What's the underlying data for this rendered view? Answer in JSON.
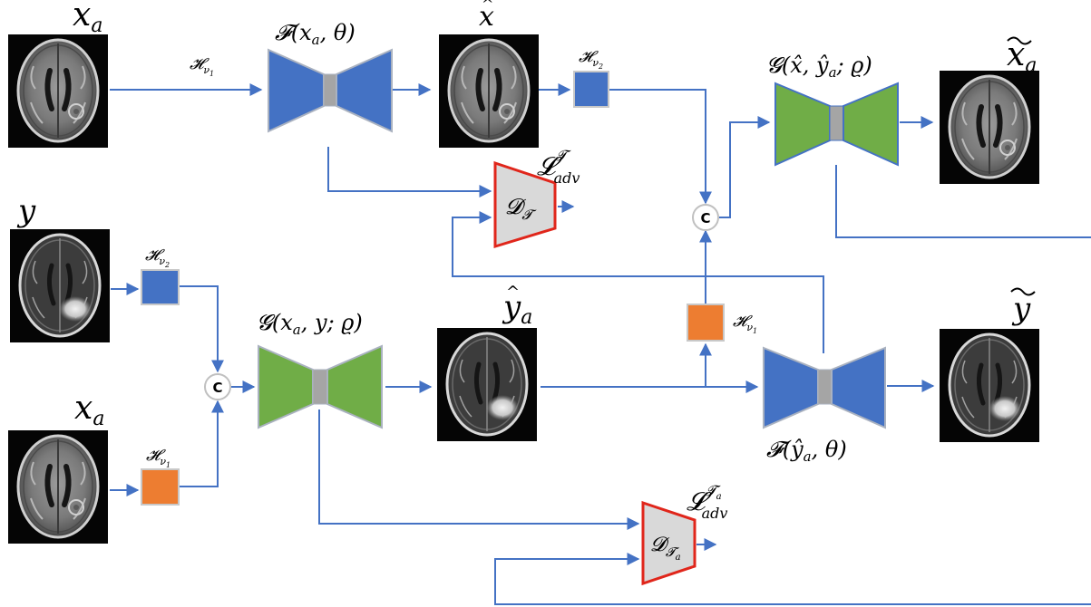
{
  "images": {
    "x_a_top": {
      "label": "x_a",
      "kind": "T1 brain MRI"
    },
    "x_hat": {
      "label": "x̂",
      "kind": "T1 brain MRI"
    },
    "x_tilde_a": {
      "label": "x̃_a",
      "kind": "T1 brain MRI"
    },
    "y": {
      "label": "y",
      "kind": "T1c brain MRI with tumor"
    },
    "x_a_bottom": {
      "label": "x_a",
      "kind": "T1 brain MRI"
    },
    "y_hat_a": {
      "label": "ŷ_a",
      "kind": "T1c brain MRI with tumor"
    },
    "y_tilde": {
      "label": "ỹ",
      "kind": "T1c brain MRI with tumor"
    }
  },
  "generators": {
    "F_top": {
      "label": "𝓕(x_a, θ)",
      "color": "#4472c4"
    },
    "G_top": {
      "label": "𝓖(x̂, ŷ_a; ϱ)",
      "color": "#70ad47"
    },
    "G_bottom": {
      "label": "𝓖(x_a, y; ϱ)",
      "color": "#70ad47"
    },
    "F_bottom": {
      "label": "𝓕(ŷ_a, θ)",
      "color": "#4472c4"
    }
  },
  "discriminators": {
    "D_T": {
      "label": "𝓓_𝓣",
      "loss_label": "𝓛_adv^𝓣"
    },
    "D_Ta": {
      "label": "𝓓_𝓣a",
      "loss_label": "𝓛_adv^𝓣a"
    }
  },
  "hash_blocks": {
    "h_nu1_arrow": {
      "label": "𝓗_ν1"
    },
    "h_nu2_top": {
      "label": "𝓗_ν2",
      "color": "#4472c4"
    },
    "h_nu2_left": {
      "label": "𝓗_ν2",
      "color": "#4472c4"
    },
    "h_nu1_left": {
      "label": "𝓗_ν1",
      "color": "#ed7d31"
    },
    "h_nu1_mid": {
      "label": "𝓗_ν1",
      "color": "#ed7d31"
    }
  },
  "concat_nodes": {
    "c_top": {
      "label": "C"
    },
    "c_left": {
      "label": "C"
    }
  },
  "colors": {
    "arrow": "#4472c4",
    "generator_blue": "#4472c4",
    "generator_green": "#70ad47",
    "generator_border": "#aab2c0",
    "bottleneck": "#a5a5a5",
    "discriminator_fill": "#d9d9d9",
    "discriminator_border": "#e0261b",
    "hash_orange": "#ed7d31",
    "hash_blue": "#4472c4"
  }
}
